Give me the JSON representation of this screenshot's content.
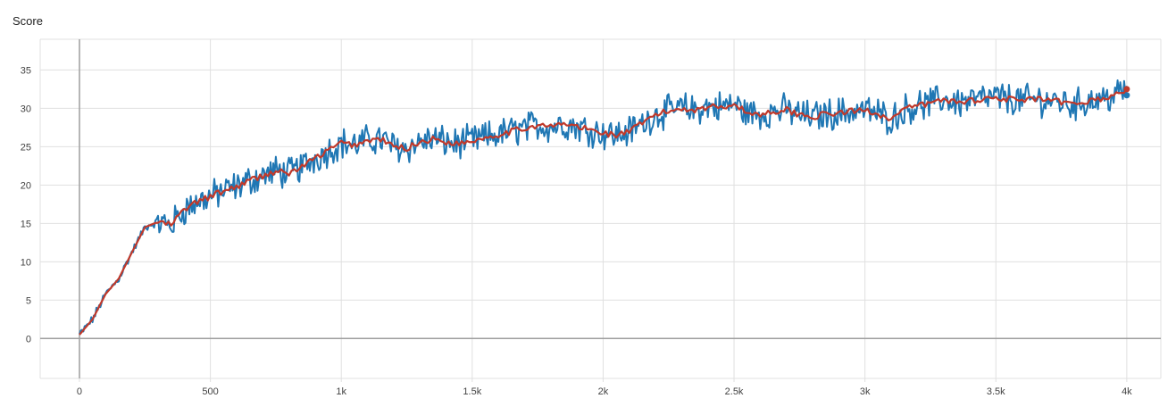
{
  "chart_data": {
    "type": "line",
    "title": "Score",
    "xlabel": "",
    "ylabel": "",
    "xlim": [
      -150,
      4130
    ],
    "ylim": [
      -5.2,
      39
    ],
    "grid": true,
    "legend": "none",
    "x_ticks": [
      0,
      500,
      1000,
      1500,
      2000,
      2500,
      3000,
      3500,
      4000
    ],
    "x_tick_labels": [
      "0",
      "500",
      "1k",
      "1.5k",
      "2k",
      "2.5k",
      "3k",
      "3.5k",
      "4k"
    ],
    "y_ticks": [
      0,
      5,
      10,
      15,
      20,
      25,
      30,
      35
    ],
    "y_tick_labels": [
      "0",
      "5",
      "10",
      "15",
      "20",
      "25",
      "30",
      "35"
    ],
    "colors": {
      "raw": "#1f77b4",
      "smoothed": "#c0392b",
      "grid": "#e0e0e0",
      "axis": "#9e9e9e"
    },
    "series": [
      {
        "x": [
          0,
          50,
          100,
          150,
          200,
          250,
          300,
          350,
          400,
          450,
          500,
          550,
          600,
          650,
          700,
          750,
          800,
          850,
          900,
          950,
          1000,
          1050,
          1100,
          1150,
          1200,
          1250,
          1300,
          1350,
          1400,
          1450,
          1500,
          1550,
          1600,
          1650,
          1700,
          1750,
          1800,
          1850,
          1900,
          1950,
          2000,
          2050,
          2100,
          2150,
          2200,
          2250,
          2300,
          2350,
          2400,
          2450,
          2500,
          2550,
          2600,
          2650,
          2700,
          2750,
          2800,
          2850,
          2900,
          2950,
          3000,
          3050,
          3100,
          3150,
          3200,
          3250,
          3300,
          3350,
          3400,
          3450,
          3500,
          3550,
          3600,
          3650,
          3700,
          3750,
          3800,
          3850,
          3900,
          3950,
          4000
        ],
        "y": [
          0.5,
          2.5,
          5.8,
          7.8,
          11.2,
          14.5,
          15.2,
          14.8,
          16.8,
          17.8,
          18.5,
          19.2,
          19.8,
          20.6,
          21.2,
          21.8,
          21.5,
          22.4,
          23.5,
          24.5,
          25.5,
          25.2,
          25.8,
          26.0,
          25.0,
          24.8,
          25.6,
          26.0,
          25.6,
          25.4,
          25.8,
          26.2,
          26.6,
          27.0,
          27.4,
          27.8,
          27.6,
          28.0,
          27.6,
          27.2,
          26.8,
          26.5,
          27.0,
          28.0,
          29.2,
          29.6,
          30.0,
          29.8,
          30.2,
          30.2,
          30.6,
          29.4,
          29.2,
          29.6,
          29.8,
          29.2,
          28.9,
          29.2,
          29.4,
          29.6,
          29.8,
          29.3,
          28.6,
          29.8,
          30.4,
          30.6,
          31.2,
          30.8,
          31.0,
          31.2,
          31.4,
          31.2,
          31.0,
          31.2,
          31.0,
          30.8,
          30.4,
          31.0,
          31.2,
          31.6,
          32.5
        ]
      }
    ]
  }
}
